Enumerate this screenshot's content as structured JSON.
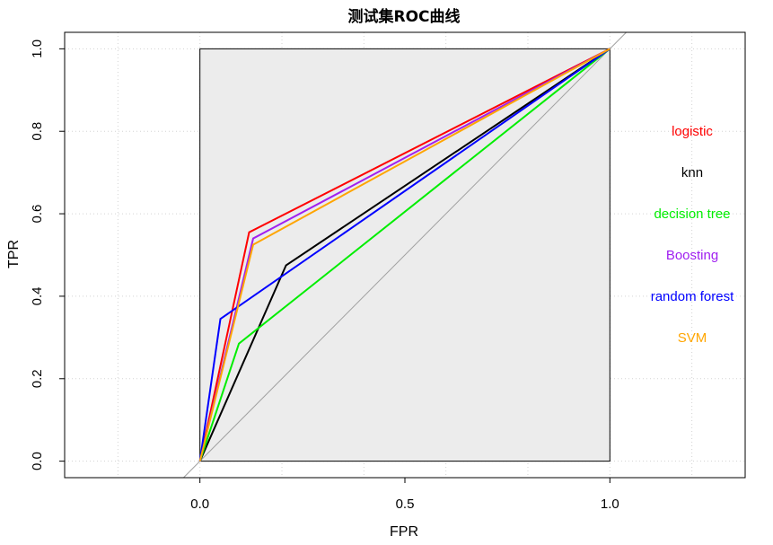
{
  "chart_data": {
    "type": "line",
    "title": "测试集ROC曲线",
    "xlabel": "FPR",
    "ylabel": "TPR",
    "xlim": [
      -0.33,
      1.33
    ],
    "ylim": [
      -0.04,
      1.04
    ],
    "x_ticks": [
      {
        "value": 0.0,
        "label": "0.0"
      },
      {
        "value": 0.5,
        "label": "0.5"
      },
      {
        "value": 1.0,
        "label": "1.0"
      }
    ],
    "y_ticks": [
      {
        "value": 0.0,
        "label": "0.0"
      },
      {
        "value": 0.2,
        "label": "0.2"
      },
      {
        "value": 0.4,
        "label": "0.4"
      },
      {
        "value": 0.6,
        "label": "0.6"
      },
      {
        "value": 0.8,
        "label": "0.8"
      },
      {
        "value": 1.0,
        "label": "1.0"
      }
    ],
    "grid": true,
    "plot_region_fill": "#ececec",
    "diagonal_color": "#a0a0a0",
    "legend_placement": "right",
    "series": [
      {
        "name": "logistic",
        "color": "#ff0000",
        "x": [
          0,
          0.12,
          1
        ],
        "y": [
          0,
          0.555,
          1
        ]
      },
      {
        "name": "knn",
        "color": "#000000",
        "x": [
          0,
          0.21,
          1
        ],
        "y": [
          0,
          0.475,
          1
        ]
      },
      {
        "name": "decision tree",
        "color": "#00ee00",
        "x": [
          0,
          0.095,
          1
        ],
        "y": [
          0,
          0.285,
          1
        ]
      },
      {
        "name": "Boosting",
        "color": "#a020f0",
        "x": [
          0,
          0.13,
          1
        ],
        "y": [
          0,
          0.54,
          1
        ]
      },
      {
        "name": "random forest",
        "color": "#0000ff",
        "x": [
          0,
          0.05,
          1
        ],
        "y": [
          0,
          0.345,
          1
        ]
      },
      {
        "name": "SVM",
        "color": "#ffa500",
        "x": [
          0,
          0.13,
          1
        ],
        "y": [
          0,
          0.525,
          1
        ]
      }
    ],
    "legend": [
      {
        "label": "logistic",
        "color": "#ff0000",
        "y": 0.8
      },
      {
        "label": "knn",
        "color": "#000000",
        "y": 0.7
      },
      {
        "label": "decision tree",
        "color": "#00ee00",
        "y": 0.6
      },
      {
        "label": "Boosting",
        "color": "#a020f0",
        "y": 0.5
      },
      {
        "label": "random forest",
        "color": "#0000ff",
        "y": 0.4
      },
      {
        "label": "SVM",
        "color": "#ffa500",
        "y": 0.3
      }
    ]
  }
}
